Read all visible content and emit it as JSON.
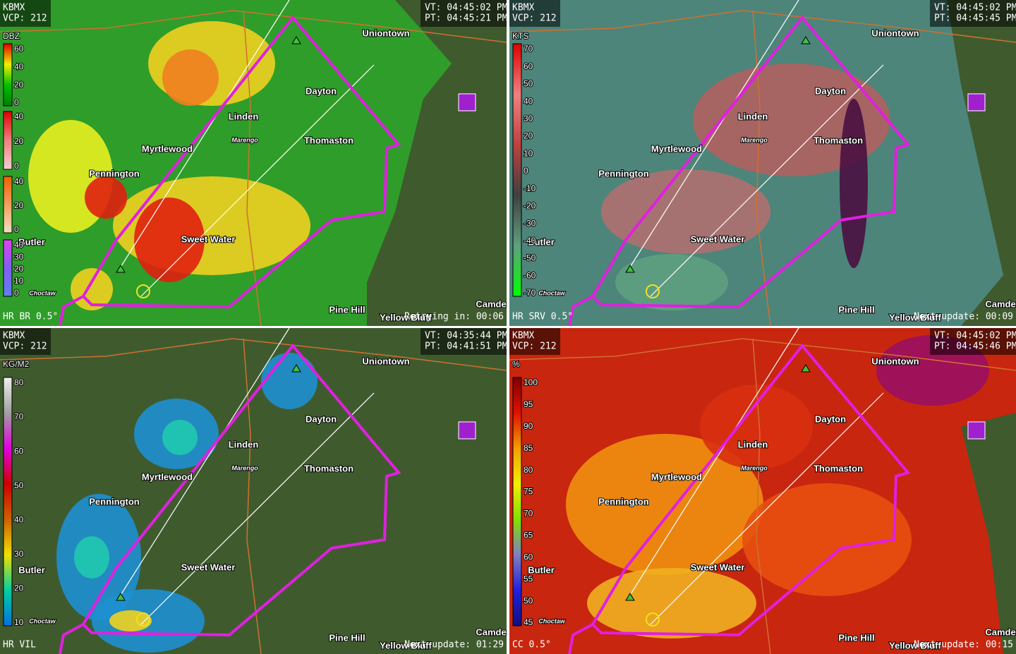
{
  "panels": [
    {
      "station": "KBMX",
      "vcp": "VCP: 212",
      "vt": "VT: 04:45:02 PM",
      "pt": "PT: 04:45:21 PM",
      "product": "HR BR 0.5°",
      "status": "Retrying in: 00:06",
      "unit": "DBZ",
      "scales": [
        [
          60,
          40,
          20,
          0
        ],
        [
          40,
          20,
          0
        ],
        [
          40,
          20,
          0
        ],
        [
          40,
          30,
          20,
          10,
          0
        ]
      ]
    },
    {
      "station": "KBMX",
      "vcp": "VCP: 212",
      "vt": "VT: 04:45:02 PM",
      "pt": "PT: 04:45:45 PM",
      "product": "HR SRV 0.5°",
      "status": "Next update: 00:09",
      "unit": "KTS",
      "scales": [
        [
          70,
          60,
          50,
          40,
          30,
          20,
          10,
          0,
          -10,
          -20,
          -30,
          -40,
          -50,
          -60,
          -70
        ]
      ]
    },
    {
      "station": "KBMX",
      "vcp": "VCP: 212",
      "vt": "VT: 04:35:44 PM",
      "pt": "PT: 04:41:51 PM",
      "product": "HR VIL",
      "status": "Next update: 01:29",
      "unit": "KG/M2",
      "scales": [
        [
          80,
          70,
          60,
          50,
          40,
          30,
          20,
          10
        ]
      ]
    },
    {
      "station": "KBMX",
      "vcp": "VCP: 212",
      "vt": "VT: 04:45:02 PM",
      "pt": "PT: 04:45:46 PM",
      "product": "CC 0.5°",
      "status": "Next update: 00:15",
      "unit": "%",
      "scales": [
        [
          100,
          95,
          90,
          85,
          80,
          75,
          70,
          65,
          60,
          55,
          50,
          45
        ]
      ]
    }
  ],
  "places": [
    "Uniontown",
    "Dayton",
    "Linden",
    "Marengo",
    "Thomaston",
    "Myrtlewood",
    "Pennington",
    "Sweet Water",
    "Butler",
    "Choctaw",
    "Pine Hill",
    "Yellow Bluff",
    "Camden"
  ]
}
